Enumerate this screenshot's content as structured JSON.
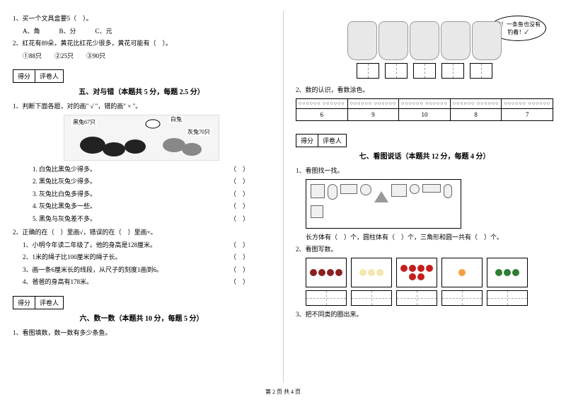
{
  "left": {
    "q1": {
      "text": "1、买一个文具盒要5（　）。",
      "opts": "A、角　　　B、分　　　C、元"
    },
    "q2": {
      "text": "2、红花有89朵，黄花比红花少很多，黄花可能有（　）。",
      "opts": "①88只　　②25只　　③90只"
    },
    "score": {
      "a": "得分",
      "b": "评卷人"
    },
    "sec5": {
      "title": "五、对与错（本题共 5 分，每题 2.5 分）",
      "q1": "1、判断下面各题，对的画\" √ \"，错的画\" × \"。",
      "labels": {
        "black": "黑兔67只",
        "white": "白兔",
        "gray": "灰兔70只"
      },
      "items": [
        "1. 白兔比黑兔少得多。",
        "2. 黑兔比灰兔少得多。",
        "3. 灰兔比白兔多得多。",
        "4. 灰兔比黑兔多一些。",
        "5. 黑兔与灰兔差不多。"
      ],
      "q2": "2、正确的在（　）里画√，错误的在（　）里画×。",
      "items2": [
        "1、小明今年读二年级了，他的身高是128厘米。",
        "2、1米的绳子比100厘米的绳子长。",
        "3、画一条6厘米长的线段，从尺子的刻度1画到6。",
        "4、爸爸的身高有178米。"
      ]
    },
    "sec6": {
      "title": "六、数一数（本题共 10 分，每题 5 分）",
      "q1": "1、看图填数，数一数有多少条鱼。"
    }
  },
  "right": {
    "speech": "唉！一条鱼也没有钓着！✓",
    "q2_label": "2、数的认识，看数涂色。",
    "table": {
      "dots": [
        "○○○○○○\n○○○○○○",
        "○○○○○○\n○○○○○○",
        "○○○○○○\n○○○○○○",
        "○○○○○○\n○○○○○○",
        "○○○○○○\n○○○○○○"
      ],
      "nums": [
        "6",
        "9",
        "10",
        "8",
        "7"
      ]
    },
    "score": {
      "a": "得分",
      "b": "评卷人"
    },
    "sec7": {
      "title": "七、看图说话（本题共 12 分，每题 4 分）",
      "q1": "1、看图找一找。",
      "fill": "长方体有（　）个，圆柱体有（　）个，三角形和圆一共有（　）个。",
      "q2": "2、看图写数。",
      "q3": "3、把不同类的圈出来。"
    },
    "fruits": {
      "colors": [
        "#8b2020",
        "#f5e5b0",
        "#c41e1e",
        "#f5a040",
        "#2e7d32"
      ],
      "counts": [
        4,
        3,
        6,
        1,
        3
      ]
    }
  },
  "footer": "第 2 页 共 4 页"
}
